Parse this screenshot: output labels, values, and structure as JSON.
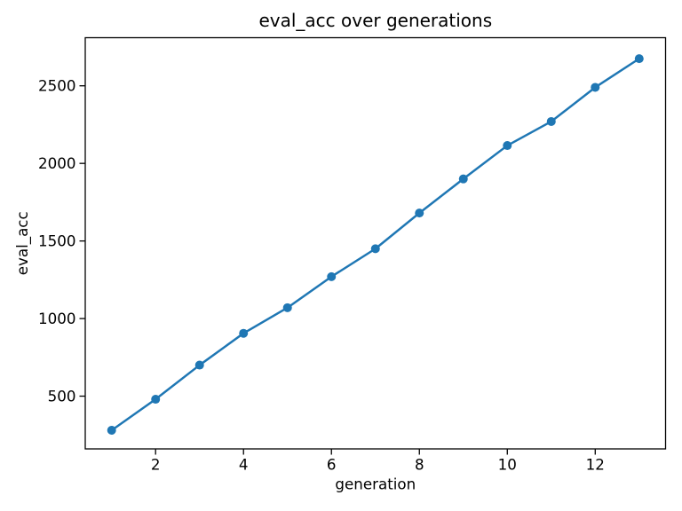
{
  "figure": {
    "background": "#ffffff",
    "text_color": "#000000"
  },
  "chart_data": {
    "type": "line",
    "title": "eval_acc over generations",
    "xlabel": "generation",
    "ylabel": "eval_acc",
    "series": [
      {
        "name": "eval_acc",
        "x": [
          1,
          2,
          3,
          4,
          5,
          6,
          7,
          8,
          9,
          10,
          11,
          12,
          13
        ],
        "values": [
          280,
          480,
          700,
          905,
          1070,
          1270,
          1450,
          1680,
          1900,
          2115,
          2270,
          2490,
          2675
        ],
        "color": "#1f77b4",
        "marker": "circle"
      }
    ],
    "xticks": [
      2,
      4,
      6,
      8,
      10,
      12
    ],
    "yticks": [
      500,
      1000,
      1500,
      2000,
      2500
    ],
    "xlim": [
      0.4,
      13.6
    ],
    "ylim": [
      160,
      2810
    ],
    "grid": false,
    "legend_position": "none"
  }
}
